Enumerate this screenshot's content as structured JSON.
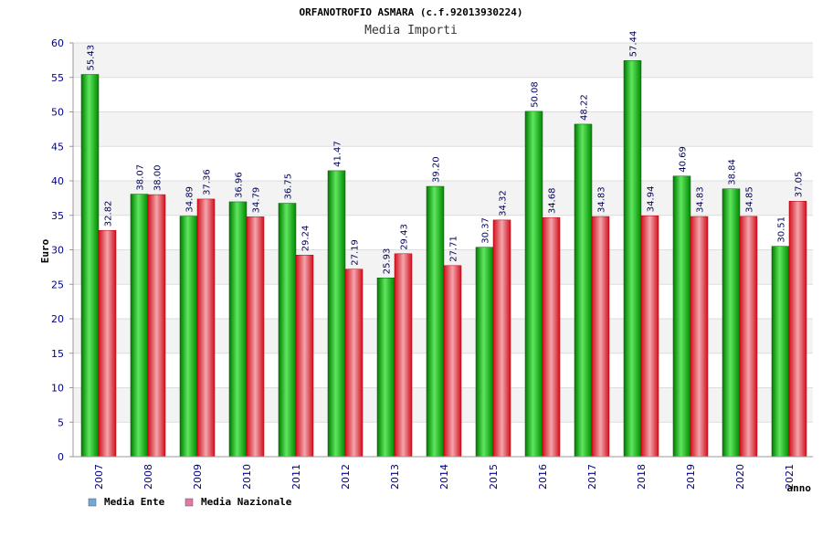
{
  "chart_data": {
    "type": "bar",
    "title": "ORFANOTROFIO ASMARA (c.f.92013930224)",
    "subtitle": "Media Importi",
    "xlabel": "anno",
    "ylabel": "Euro",
    "ylim": [
      0,
      60
    ],
    "yticks": [
      0,
      5,
      10,
      15,
      20,
      25,
      30,
      35,
      40,
      45,
      50,
      55,
      60
    ],
    "grid": true,
    "legend_position": "bottom-left",
    "categories": [
      "2007",
      "2008",
      "2009",
      "2010",
      "2011",
      "2012",
      "2013",
      "2014",
      "2015",
      "2016",
      "2017",
      "2018",
      "2019",
      "2020",
      "2021"
    ],
    "series": [
      {
        "name": "Media Ente",
        "color": "#00b000",
        "legend_color": "#6fa8dc",
        "values": [
          55.43,
          38.07,
          34.89,
          36.96,
          36.75,
          41.47,
          25.93,
          39.2,
          30.37,
          50.08,
          48.22,
          57.44,
          40.69,
          38.84,
          30.51
        ],
        "labels": [
          "55.43",
          "38.07",
          "34.89",
          "36.96",
          "36.75",
          "41.47",
          "25.93",
          "39.20",
          "30.37",
          "50.08",
          "48.22",
          "57.44",
          "40.69",
          "38.84",
          "30.51"
        ]
      },
      {
        "name": "Media Nazionale",
        "color": "#e8323c",
        "legend_color": "#e377a6",
        "values": [
          32.82,
          38.0,
          37.36,
          34.79,
          29.24,
          27.19,
          29.43,
          27.71,
          34.32,
          34.68,
          34.83,
          34.94,
          34.83,
          34.85,
          37.05
        ],
        "labels": [
          "32.82",
          "38.00",
          "37.36",
          "34.79",
          "29.24",
          "27.19",
          "29.43",
          "27.71",
          "34.32",
          "34.68",
          "34.83",
          "34.94",
          "34.83",
          "34.85",
          "37.05"
        ]
      }
    ]
  }
}
